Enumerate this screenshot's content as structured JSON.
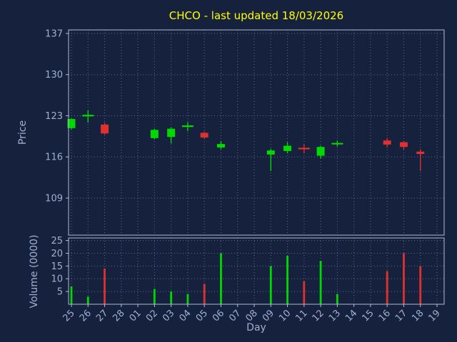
{
  "title": "CHCO - last updated 18/03/2026",
  "colors": {
    "background": "#16213e",
    "title": "#ffff00",
    "axis_label": "#9fb0ce",
    "tick_label": "#9fb0ce",
    "grid": "#5a6b8e",
    "spine": "#aebcd4",
    "up": "#00d800",
    "down": "#e03030"
  },
  "chart_data": {
    "type": "candlestick",
    "title": "CHCO - last updated 18/03/2026",
    "xlabel": "Day",
    "price_ylabel": "Price",
    "volume_ylabel": "Volume (0000)",
    "grid": "dotted",
    "legend": "none",
    "price_yticks": [
      109,
      116,
      123,
      130,
      137
    ],
    "volume_yticks": [
      5,
      10,
      15,
      20,
      25
    ],
    "price_ylim": [
      102.7,
      137.6
    ],
    "volume_ylim": [
      0,
      26
    ],
    "categories": [
      "25",
      "26",
      "27",
      "28",
      "01",
      "02",
      "03",
      "04",
      "05",
      "06",
      "07",
      "08",
      "09",
      "10",
      "11",
      "12",
      "13",
      "14",
      "15",
      "16",
      "17",
      "18",
      "19"
    ],
    "candles": [
      {
        "day": "25",
        "open": 120.9,
        "high": 122.6,
        "low": 120.7,
        "close": 122.45,
        "volume": 7,
        "direction": "up"
      },
      {
        "day": "26",
        "open": 123.0,
        "high": 123.9,
        "low": 121.85,
        "close": 123.05,
        "volume": 3,
        "direction": "up"
      },
      {
        "day": "27",
        "open": 121.5,
        "high": 121.8,
        "low": 119.8,
        "close": 120.0,
        "volume": 14,
        "direction": "down"
      },
      null,
      null,
      {
        "day": "02",
        "open": 119.2,
        "high": 120.8,
        "low": 119.0,
        "close": 120.6,
        "volume": 6,
        "direction": "up"
      },
      {
        "day": "03",
        "open": 119.4,
        "high": 121.0,
        "low": 118.3,
        "close": 120.8,
        "volume": 5,
        "direction": "up"
      },
      {
        "day": "04",
        "open": 121.2,
        "high": 121.9,
        "low": 120.4,
        "close": 121.25,
        "volume": 4,
        "direction": "up"
      },
      {
        "day": "05",
        "open": 120.1,
        "high": 120.3,
        "low": 119.1,
        "close": 119.3,
        "volume": 8,
        "direction": "down"
      },
      {
        "day": "06",
        "open": 117.6,
        "high": 118.7,
        "low": 117.3,
        "close": 118.2,
        "volume": 20,
        "direction": "up"
      },
      null,
      null,
      {
        "day": "09",
        "open": 116.4,
        "high": 117.4,
        "low": 113.6,
        "close": 117.1,
        "volume": 15,
        "direction": "up"
      },
      {
        "day": "10",
        "open": 117.0,
        "high": 118.5,
        "low": 116.6,
        "close": 117.9,
        "volume": 19,
        "direction": "up"
      },
      {
        "day": "11",
        "open": 117.45,
        "high": 118.1,
        "low": 116.6,
        "close": 117.4,
        "volume": 9,
        "direction": "down"
      },
      {
        "day": "12",
        "open": 116.2,
        "high": 117.9,
        "low": 115.7,
        "close": 117.7,
        "volume": 17,
        "direction": "up"
      },
      {
        "day": "13",
        "open": 118.2,
        "high": 118.8,
        "low": 117.8,
        "close": 118.3,
        "volume": 4,
        "direction": "up"
      },
      null,
      null,
      {
        "day": "16",
        "open": 118.8,
        "high": 119.2,
        "low": 117.7,
        "close": 118.1,
        "volume": 13,
        "direction": "down"
      },
      {
        "day": "17",
        "open": 118.5,
        "high": 118.7,
        "low": 117.3,
        "close": 117.7,
        "volume": 20,
        "direction": "down"
      },
      {
        "day": "18",
        "open": 116.9,
        "high": 117.3,
        "low": 113.6,
        "close": 116.5,
        "volume": 15,
        "direction": "down"
      },
      null
    ]
  }
}
